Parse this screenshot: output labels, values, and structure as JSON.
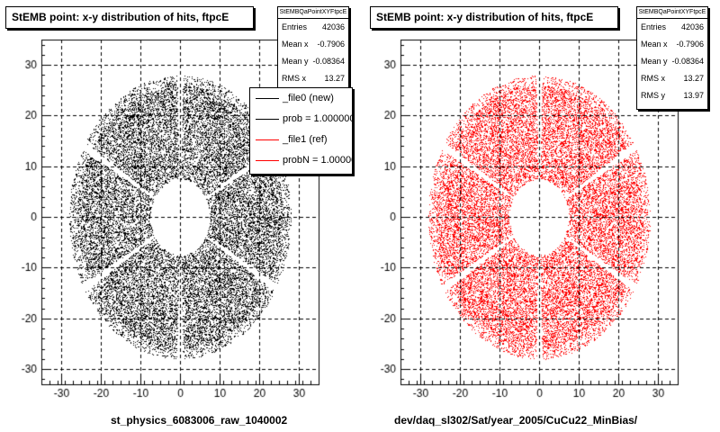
{
  "colors": {
    "ref_series": "#000000",
    "new_series": "#ff0000",
    "grid": "#000000"
  },
  "chart_data": [
    {
      "type": "scatter",
      "title": "StEMB point: x-y distribution of hits, ftpcE",
      "xlim": [
        -35,
        35
      ],
      "ylim": [
        -33,
        35
      ],
      "x_ticks": [
        -30,
        -20,
        -10,
        0,
        10,
        20,
        30
      ],
      "y_ticks": [
        -30,
        -20,
        -10,
        0,
        10,
        20,
        30
      ],
      "grid": true,
      "series": [
        {
          "name": "_file0 (new)",
          "color": "#000000",
          "distribution": {
            "r_inner": 7.5,
            "r_outer": 28,
            "sector_gaps_deg": [
              90,
              150,
              210,
              270,
              330,
              30
            ]
          }
        }
      ],
      "stats": {
        "title": "StEMBQaPointXYFtpcE",
        "rows": [
          {
            "label": "Entries",
            "value": "42036"
          },
          {
            "label": "Mean x",
            "value": "-0.7906"
          },
          {
            "label": "Mean y",
            "value": "-0.08364"
          },
          {
            "label": "RMS x",
            "value": "13.27"
          }
        ]
      },
      "legend": [
        {
          "label": "_file0 (new)",
          "color": "#000000"
        },
        {
          "label": "prob = 1.000000",
          "color": "#000000"
        },
        {
          "label": "_file1 (ref)",
          "color": "#ff0000"
        },
        {
          "label": "probN = 1.000000",
          "color": "#ff0000"
        }
      ],
      "footer": "st_physics_6083006_raw_1040002"
    },
    {
      "type": "scatter",
      "title": "StEMB point: x-y distribution of hits, ftpcE",
      "xlim": [
        -35,
        35
      ],
      "ylim": [
        -33,
        35
      ],
      "x_ticks": [
        -30,
        -20,
        -10,
        0,
        10,
        20,
        30
      ],
      "y_ticks": [
        -30,
        -20,
        -10,
        0,
        10,
        20,
        30
      ],
      "grid": true,
      "series": [
        {
          "name": "_file1 (ref)",
          "color": "#ff0000",
          "distribution": {
            "r_inner": 7.5,
            "r_outer": 28,
            "sector_gaps_deg": [
              90,
              150,
              210,
              270,
              330,
              30
            ]
          }
        }
      ],
      "stats": {
        "title": "StEMBQaPointXYFtpcE",
        "rows": [
          {
            "label": "Entries",
            "value": "42036"
          },
          {
            "label": "Mean x",
            "value": "-0.7906"
          },
          {
            "label": "Mean y",
            "value": "-0.08364"
          },
          {
            "label": "RMS x",
            "value": "13.27"
          },
          {
            "label": "RMS y",
            "value": "13.97"
          }
        ]
      },
      "footer": "dev/daq_sl302/Sat/year_2005/CuCu22_MinBias/"
    }
  ]
}
